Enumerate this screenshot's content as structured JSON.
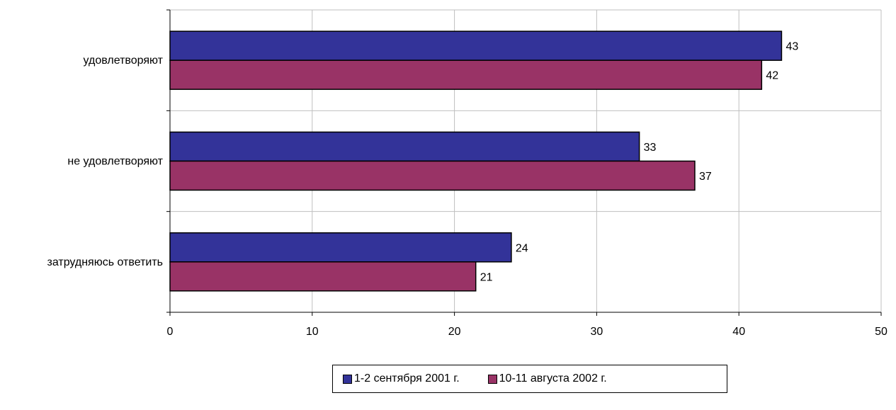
{
  "chart_data": {
    "type": "bar",
    "orientation": "horizontal",
    "categories": [
      "удовлетворяют",
      "не удовлетворяют",
      "затрудняюсь ответить"
    ],
    "series": [
      {
        "name": "1-2 сентября 2001 г.",
        "color": "#333399",
        "values": [
          43,
          33,
          24
        ]
      },
      {
        "name": "10-11 августа 2002 г.",
        "color": "#993366",
        "values": [
          42,
          37,
          21
        ]
      }
    ],
    "bar_lengths": [
      [
        43,
        33,
        24
      ],
      [
        41.6,
        36.9,
        21.5
      ]
    ],
    "xlim": [
      0,
      50
    ],
    "xticks": [
      0,
      10,
      20,
      30,
      40,
      50
    ],
    "xlabel": "",
    "ylabel": "",
    "title": "",
    "grid": "vertical",
    "legend_position": "bottom"
  }
}
